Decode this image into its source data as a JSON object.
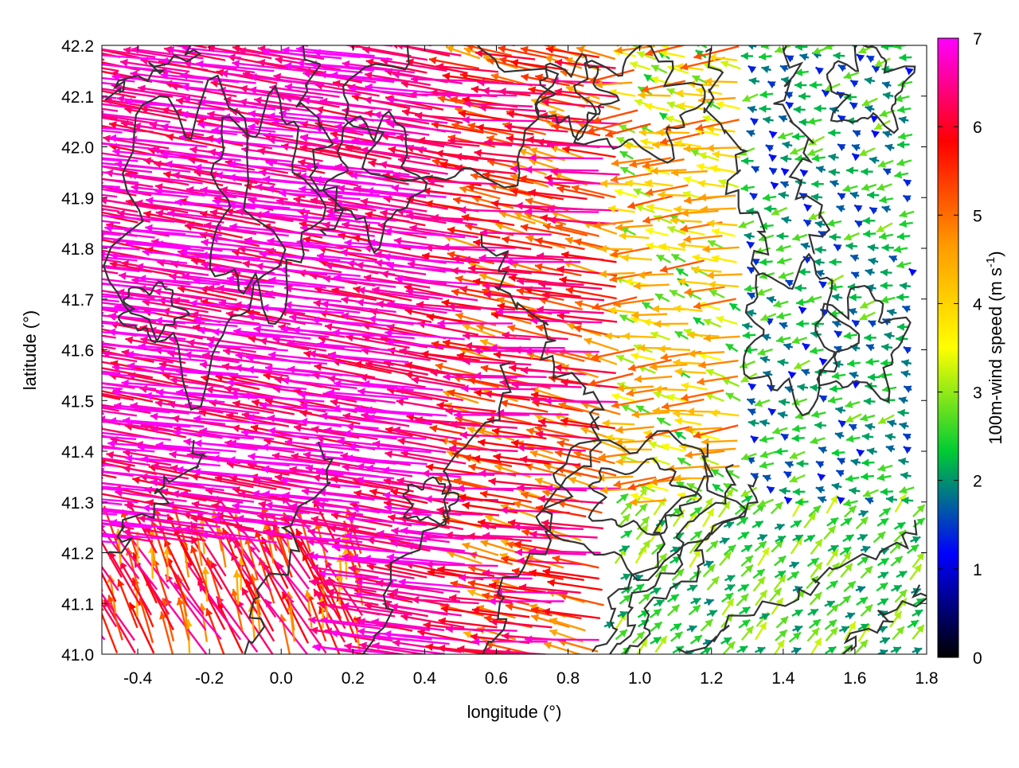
{
  "chart_data": {
    "type": "vector-field",
    "xlabel": "longitude (°)",
    "ylabel": "latitude (°)",
    "xlim": [
      -0.5,
      1.8
    ],
    "ylim": [
      41.0,
      42.2
    ],
    "x_ticks": [
      -0.4,
      -0.2,
      0.0,
      0.2,
      0.4,
      0.6,
      0.8,
      1.0,
      1.2,
      1.4,
      1.6,
      1.8
    ],
    "x_tick_labels": [
      "-0.4",
      "-0.2",
      "0.0",
      "0.2",
      "0.4",
      "0.6",
      "0.8",
      "1.0",
      "1.2",
      "1.4",
      "1.6",
      "1.8"
    ],
    "y_ticks": [
      41.0,
      41.1,
      41.2,
      41.3,
      41.4,
      41.5,
      41.6,
      41.7,
      41.8,
      41.9,
      42.0,
      42.1,
      42.2
    ],
    "y_tick_labels": [
      "41.0",
      "41.1",
      "41.2",
      "41.3",
      "41.4",
      "41.5",
      "41.6",
      "41.7",
      "41.8",
      "41.9",
      "42.0",
      "42.1",
      "42.2"
    ],
    "colorbar": {
      "label_main": "100m-wind speed (m s",
      "label_sup": "-1",
      "label_end": ")",
      "range": [
        0,
        7
      ],
      "ticks": [
        0,
        1,
        2,
        3,
        4,
        5,
        6,
        7
      ],
      "tick_labels": [
        "0",
        "1",
        "2",
        "3",
        "4",
        "5",
        "6",
        "7"
      ],
      "colors": [
        "#000000",
        "#0000ff",
        "#00cc33",
        "#ffff00",
        "#ff9900",
        "#ff0000",
        "#ff00ff"
      ]
    },
    "grid": false,
    "contours": "terrain elevation (dark grey lines, unlabeled)",
    "description_regions": [
      {
        "region": "west half, lat 41.2-42.2",
        "speed": 7,
        "direction": "westward"
      },
      {
        "region": "southwest corner, lat 41.0-41.2",
        "speed": 6,
        "direction": "north-westward"
      },
      {
        "region": "east, lat 41.4-42.2",
        "speed": 2,
        "direction": "westward, weak"
      },
      {
        "region": "southeast, lat 41.0-41.3",
        "speed": 2.5,
        "direction": "north-eastward"
      }
    ]
  }
}
